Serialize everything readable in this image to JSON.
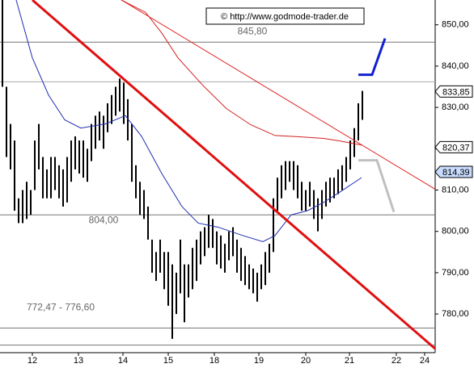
{
  "chart_data": {
    "type": "hilo",
    "copyright": "© http://www.godmode-trader.de",
    "ylim": [
      772.4,
      856
    ],
    "yticks": [
      {
        "value": 780,
        "label": "780,00"
      },
      {
        "value": 790,
        "label": "790,00"
      },
      {
        "value": 800,
        "label": "800,00"
      },
      {
        "value": 810,
        "label": "810,00"
      },
      {
        "value": 820,
        "label": "820,00"
      },
      {
        "value": 830,
        "label": "830,00"
      },
      {
        "value": 840,
        "label": "840,00"
      },
      {
        "value": 850,
        "label": "850,00"
      }
    ],
    "xlim": [
      -0.6,
      107
    ],
    "xticks": [
      {
        "value": 7.4,
        "label": "12"
      },
      {
        "value": 18.8,
        "label": "13"
      },
      {
        "value": 29.8,
        "label": "14"
      },
      {
        "value": 41,
        "label": "15"
      },
      {
        "value": 52.4,
        "label": "18"
      },
      {
        "value": 63.4,
        "label": "19"
      },
      {
        "value": 75,
        "label": "20"
      },
      {
        "value": 85.8,
        "label": "21"
      },
      {
        "value": 97.4,
        "label": "22"
      },
      {
        "value": 104.4,
        "label": "24"
      }
    ],
    "bar_color": "#000000",
    "high": [
      856,
      835,
      826,
      822,
      808,
      810,
      812,
      810,
      822,
      826,
      818,
      815,
      818,
      818,
      816,
      815,
      818,
      822,
      823,
      822,
      822,
      820,
      826,
      828,
      829,
      828,
      831,
      833,
      835,
      837,
      836,
      832,
      826,
      816,
      812,
      810,
      806,
      798,
      795,
      798,
      795,
      795,
      792,
      790,
      798,
      792,
      792,
      796,
      798,
      800,
      801,
      804,
      803,
      800,
      799,
      797,
      800,
      801,
      798,
      796,
      794,
      792,
      791,
      790,
      792,
      795,
      797,
      808,
      813,
      816,
      817,
      817,
      817,
      816,
      812,
      810,
      812,
      810,
      808,
      810,
      812,
      813,
      813,
      815,
      816,
      818,
      822,
      825,
      831,
      834
    ],
    "low": [
      835,
      818,
      815,
      805,
      802,
      802,
      803,
      804,
      810,
      815,
      808,
      808,
      808,
      810,
      808,
      806,
      807,
      812,
      815,
      814,
      813,
      812,
      817,
      820,
      822,
      820,
      824,
      826,
      828,
      829,
      826,
      822,
      812,
      808,
      804,
      803,
      798,
      790,
      788,
      790,
      786,
      782,
      774,
      780,
      785,
      778,
      784,
      786,
      788,
      792,
      794,
      796,
      796,
      792,
      791,
      790,
      793,
      794,
      790,
      788,
      787,
      786,
      785,
      783,
      786,
      787,
      790,
      795,
      805,
      808,
      810,
      812,
      810,
      808,
      805,
      805,
      806,
      803,
      800,
      803,
      806,
      807,
      808,
      809,
      810,
      812,
      815,
      818,
      822,
      827
    ],
    "lines": [
      {
        "color": "#1f2fb0",
        "width": 1,
        "x": [
          3.4,
          7.4,
          11.4,
          15.4,
          19.4,
          25.4,
          30.4,
          34.4,
          39.4,
          44.4,
          48.4,
          53.4,
          59.4,
          64.4,
          67.4,
          71.4,
          75.4,
          79.4,
          83.4,
          88.8
        ],
        "values": [
          856,
          842,
          833,
          827,
          825,
          826,
          828,
          823,
          814,
          806,
          802,
          801,
          799,
          797.5,
          799,
          804,
          805,
          807,
          809.5,
          813
        ]
      },
      {
        "color": "#d42020",
        "width": 1,
        "x": [
          29.4,
          35.4,
          39.4,
          43.4,
          49.4,
          55.4,
          61.4,
          67.4,
          73.4,
          79.4,
          83.4,
          88.8
        ],
        "values": [
          856,
          853,
          848,
          842,
          835.5,
          829.7,
          825.8,
          823.2,
          822.9,
          822.5,
          821.9,
          820.9
        ]
      },
      {
        "color": "#e01010",
        "width": 3,
        "x": [
          7.4,
          107
        ],
        "values": [
          856,
          771.6
        ]
      },
      {
        "color": "#e02020",
        "width": 1,
        "x": [
          29.4,
          107
        ],
        "values": [
          856,
          810.2
        ]
      },
      {
        "color": "#1020d0",
        "width": 3,
        "x": [
          88,
          91.4,
          94.6
        ],
        "values": [
          837.9,
          837.9,
          846.7
        ]
      },
      {
        "color": "#c0c0c0",
        "width": 3,
        "x": [
          88,
          92.6,
          96.8
        ],
        "values": [
          817.2,
          817.2,
          804.7
        ]
      }
    ],
    "levels": [
      {
        "value": 845.8,
        "label": "845,80"
      },
      {
        "value": 836.2
      },
      {
        "value": 804,
        "label": "804,00"
      },
      {
        "value": 776.6,
        "label": "772,47 - 776,60"
      },
      {
        "value": 772.47
      }
    ],
    "tags": [
      {
        "value": 833.85,
        "label": "833,85",
        "color": "#ffffff"
      },
      {
        "value": 820.37,
        "label": "820,37",
        "color": "#ffffff"
      },
      {
        "value": 814.39,
        "label": "814,39",
        "color": "#c8dcff"
      }
    ]
  }
}
